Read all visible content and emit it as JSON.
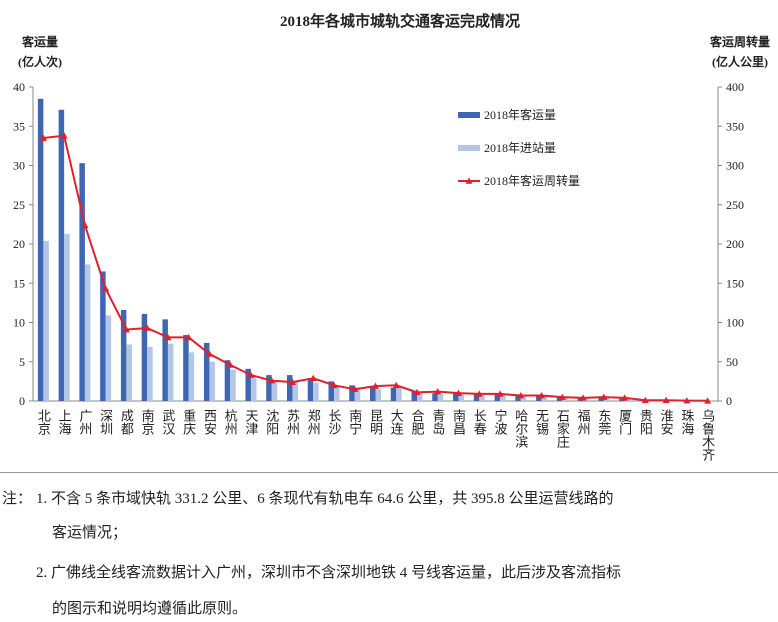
{
  "chart_data": {
    "type": "bar",
    "title": "2018年各城市城轨交通客运完成情况",
    "y_label": [
      "客运量",
      "(亿人次)"
    ],
    "y2_label": [
      "客运周转量",
      "(亿人公里)"
    ],
    "categories": [
      "北京",
      "上海",
      "广州",
      "深圳",
      "成都",
      "南京",
      "武汉",
      "重庆",
      "西安",
      "杭州",
      "天津",
      "沈阳",
      "苏州",
      "郑州",
      "长沙",
      "南宁",
      "昆明",
      "大连",
      "合肥",
      "青岛",
      "南昌",
      "长春",
      "宁波",
      "哈尔滨",
      "无锡",
      "石家庄",
      "福州",
      "东莞",
      "厦门",
      "贵阳",
      "淮安",
      "珠海",
      "乌鲁木齐"
    ],
    "series": [
      {
        "name": "2018年客运量",
        "color": "#3f67b1",
        "type": "bar",
        "values": [
          38.5,
          37.1,
          30.3,
          16.5,
          11.6,
          11.1,
          10.4,
          8.4,
          7.4,
          5.2,
          4.1,
          3.3,
          3.3,
          2.9,
          2.5,
          2.0,
          1.8,
          1.7,
          1.2,
          1.0,
          1.1,
          0.9,
          0.9,
          0.7,
          0.7,
          0.5,
          0.4,
          0.4,
          0.3,
          0.1,
          0.1,
          0.05,
          0.02
        ]
      },
      {
        "name": "2018年进站量",
        "color": "#b4c6e7",
        "type": "bar",
        "values": [
          20.4,
          21.3,
          17.4,
          10.9,
          7.2,
          6.9,
          7.3,
          6.2,
          5.0,
          4.0,
          3.0,
          2.5,
          2.6,
          2.3,
          1.8,
          1.7,
          1.5,
          1.7,
          1.1,
          0.9,
          1.0,
          0.8,
          0.8,
          0.6,
          0.6,
          0.4,
          0.4,
          0.4,
          0.3,
          0.1,
          0.1,
          0.05,
          0.02
        ]
      },
      {
        "name": "2018年客运周转量",
        "color": "#e0202c",
        "type": "line",
        "axis": "y2",
        "values": [
          335,
          338,
          224,
          143,
          91,
          93,
          81,
          81,
          60,
          46,
          33,
          26,
          24,
          29,
          20,
          15,
          19,
          20,
          11,
          12,
          10,
          9,
          9,
          7,
          7,
          5,
          4,
          5,
          4,
          1,
          1,
          0.5,
          0.3
        ]
      }
    ],
    "ylim": [
      0,
      40
    ],
    "yticks": [
      0,
      5,
      10,
      15,
      20,
      25,
      30,
      35,
      40
    ],
    "y2lim": [
      0,
      400
    ],
    "y2ticks": [
      0,
      50,
      100,
      150,
      200,
      250,
      300,
      350,
      400
    ],
    "legend": "top-right"
  },
  "notes": {
    "prefix": "注：",
    "lines": [
      "1. 不含 5 条市域快轨 331.2 公里、6 条现代有轨电车 64.6 公里，共 395.8 公里运营线路的",
      "客运情况；",
      "2. 广佛线全线客流数据计入广州，深圳市不含深圳地铁 4 号线客运量，此后涉及客流指标",
      "的图示和说明均遵循此原则。"
    ]
  }
}
